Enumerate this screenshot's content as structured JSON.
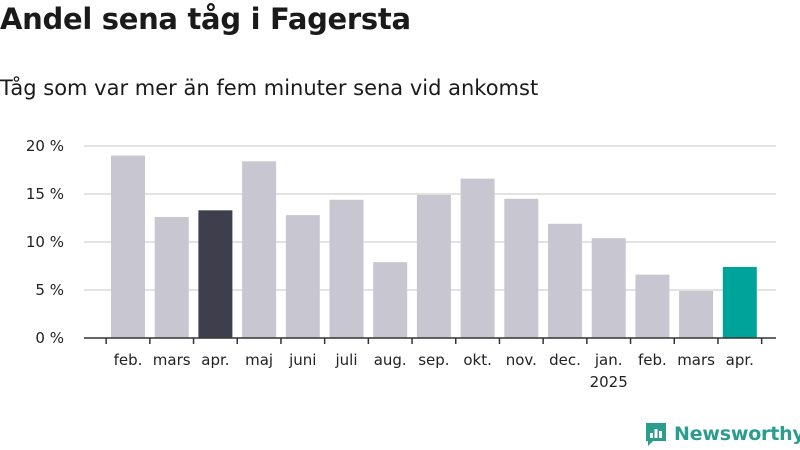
{
  "title": "Andel sena tåg i Fagersta",
  "subtitle": "Tåg som var mer än fem minuter sena vid ankomst",
  "brand": "Newsworthy",
  "colors": {
    "default_bar": "#c8c6d0",
    "highlight_prev_year": "#3f3e4c",
    "highlight_current": "#00a39a",
    "grid": "#d9d9d9",
    "axis": "#333333",
    "brand": "#2a9d8f"
  },
  "chart_data": {
    "type": "bar",
    "categories": [
      "feb.",
      "mars",
      "apr.",
      "maj",
      "juni",
      "juli",
      "aug.",
      "sep.",
      "okt.",
      "nov.",
      "dec.",
      "jan.",
      "feb.",
      "mars",
      "apr."
    ],
    "year_labels": [
      "",
      "",
      "",
      "",
      "",
      "",
      "",
      "",
      "",
      "",
      "",
      "2025",
      "",
      "",
      ""
    ],
    "values": [
      19.0,
      12.6,
      13.3,
      18.4,
      12.8,
      14.4,
      7.9,
      14.9,
      16.6,
      14.5,
      11.9,
      10.4,
      6.6,
      4.9,
      7.4
    ],
    "highlight": [
      "default",
      "default",
      "prev_year",
      "default",
      "default",
      "default",
      "default",
      "default",
      "default",
      "default",
      "default",
      "default",
      "default",
      "default",
      "current"
    ],
    "yticks": [
      0,
      5,
      10,
      15,
      20
    ],
    "ytick_labels": [
      "0 %",
      "5 %",
      "10 %",
      "15 %",
      "20 %"
    ],
    "ylim": [
      0,
      20
    ],
    "grid": true
  }
}
